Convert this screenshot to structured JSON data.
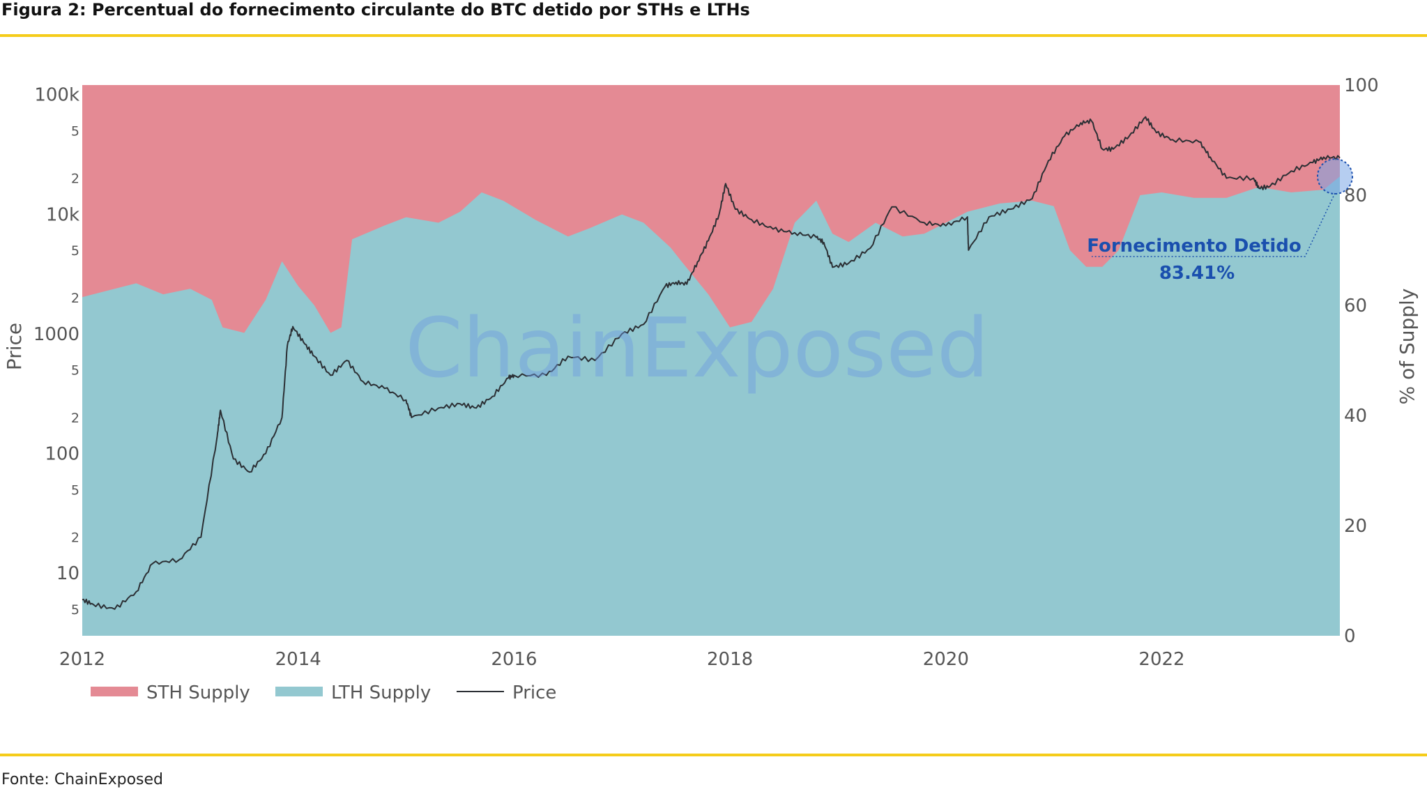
{
  "figure": {
    "title": "Figura 2: Percentual do fornecimento circulante do BTC detido por STHs e LTHs",
    "source": "Fonte: ChainExposed",
    "watermark": "ChainExposed",
    "accent_rule_color": "#f5cc1a"
  },
  "chart_data": {
    "type": "area",
    "x_range": [
      2012.0,
      2023.65
    ],
    "x_ticks": [
      "2012",
      "2014",
      "2016",
      "2018",
      "2020",
      "2022"
    ],
    "left_axis": {
      "title": "Price",
      "scale": "log",
      "range": [
        3,
        120000
      ],
      "major_ticks": [
        {
          "value": 10,
          "label": "10"
        },
        {
          "value": 100,
          "label": "100"
        },
        {
          "value": 1000,
          "label": "1000"
        },
        {
          "value": 10000,
          "label": "10k"
        },
        {
          "value": 100000,
          "label": "100k"
        }
      ],
      "minor_ticks": [
        {
          "value": 5,
          "label": "5"
        },
        {
          "value": 20,
          "label": "2"
        },
        {
          "value": 50,
          "label": "5"
        },
        {
          "value": 200,
          "label": "2"
        },
        {
          "value": 500,
          "label": "5"
        },
        {
          "value": 2000,
          "label": "2"
        },
        {
          "value": 5000,
          "label": "5"
        },
        {
          "value": 20000,
          "label": "2"
        },
        {
          "value": 50000,
          "label": "5"
        }
      ]
    },
    "right_axis": {
      "title": "% of Supply",
      "range": [
        0,
        100
      ],
      "ticks": [
        {
          "value": 0,
          "label": "0"
        },
        {
          "value": 20,
          "label": "20"
        },
        {
          "value": 40,
          "label": "40"
        },
        {
          "value": 60,
          "label": "60"
        },
        {
          "value": 80,
          "label": "80"
        },
        {
          "value": 100,
          "label": "100"
        }
      ]
    },
    "series": [
      {
        "name": "STH Supply",
        "kind": "area-fill-to-100",
        "color": "#e48a94"
      },
      {
        "name": "LTH Supply",
        "kind": "area-from-0",
        "color": "#93c8d0"
      },
      {
        "name": "Price",
        "kind": "line",
        "color": "#2b2f34"
      }
    ],
    "lth_supply_pct": {
      "x": [
        2012.0,
        2012.3,
        2012.5,
        2012.75,
        2013.0,
        2013.2,
        2013.3,
        2013.5,
        2013.7,
        2013.85,
        2014.0,
        2014.15,
        2014.3,
        2014.4,
        2014.5,
        2014.8,
        2015.0,
        2015.3,
        2015.5,
        2015.7,
        2015.9,
        2016.2,
        2016.5,
        2016.7,
        2017.0,
        2017.2,
        2017.45,
        2017.55,
        2017.8,
        2018.0,
        2018.2,
        2018.4,
        2018.6,
        2018.8,
        2018.95,
        2019.1,
        2019.35,
        2019.6,
        2019.8,
        2020.0,
        2020.2,
        2020.5,
        2020.8,
        2021.0,
        2021.15,
        2021.3,
        2021.45,
        2021.6,
        2021.8,
        2022.0,
        2022.3,
        2022.6,
        2022.9,
        2023.2,
        2023.5,
        2023.65
      ],
      "y": [
        61.5,
        63,
        64,
        62,
        63,
        61,
        56,
        55,
        61,
        68,
        63.5,
        60,
        55,
        56,
        72,
        74.5,
        76,
        75,
        77,
        80.5,
        79,
        75.5,
        72.5,
        74,
        76.5,
        75,
        70.5,
        68,
        62,
        56,
        57,
        63,
        75,
        79,
        73,
        71.5,
        75,
        72.5,
        73,
        75,
        77,
        78.5,
        79,
        78,
        70,
        67,
        67,
        70,
        80,
        80.5,
        79.5,
        79.5,
        81.5,
        80.5,
        81,
        83.41
      ]
    },
    "price_usd": {
      "x": [
        2012.0,
        2012.1,
        2012.3,
        2012.5,
        2012.65,
        2012.9,
        2013.1,
        2013.25,
        2013.28,
        2013.4,
        2013.55,
        2013.7,
        2013.85,
        2013.9,
        2013.95,
        2014.05,
        2014.15,
        2014.3,
        2014.45,
        2014.6,
        2014.8,
        2015.0,
        2015.05,
        2015.3,
        2015.5,
        2015.65,
        2015.8,
        2015.95,
        2016.0,
        2016.3,
        2016.5,
        2016.75,
        2017.0,
        2017.2,
        2017.4,
        2017.5,
        2017.6,
        2017.7,
        2017.8,
        2017.9,
        2017.96,
        2018.05,
        2018.2,
        2018.4,
        2018.6,
        2018.8,
        2018.87,
        2018.95,
        2019.1,
        2019.3,
        2019.5,
        2019.8,
        2020.0,
        2020.2,
        2020.21,
        2020.4,
        2020.6,
        2020.8,
        2020.95,
        2021.1,
        2021.25,
        2021.35,
        2021.45,
        2021.55,
        2021.7,
        2021.85,
        2021.95,
        2022.1,
        2022.35,
        2022.45,
        2022.6,
        2022.85,
        2022.9,
        2023.0,
        2023.2,
        2023.4,
        2023.5,
        2023.65
      ],
      "y": [
        6,
        5.5,
        5,
        7,
        12,
        13,
        20,
        140,
        230,
        90,
        70,
        100,
        200,
        800,
        1150,
        850,
        650,
        450,
        600,
        400,
        350,
        280,
        200,
        240,
        260,
        240,
        300,
        430,
        450,
        450,
        650,
        600,
        1000,
        1200,
        2500,
        2700,
        2600,
        4000,
        6000,
        10000,
        18000,
        11000,
        9000,
        7500,
        7000,
        6400,
        5800,
        3600,
        3900,
        5200,
        11500,
        8500,
        8000,
        9500,
        5000,
        9500,
        11000,
        13500,
        28000,
        45000,
        58000,
        60000,
        35000,
        35000,
        45000,
        65000,
        48000,
        42000,
        40000,
        30000,
        20000,
        20000,
        16500,
        17000,
        23000,
        27000,
        30000,
        29500
      ]
    },
    "annotation": {
      "label": "Fornecimento Detido",
      "value": "83.41%",
      "at_x": 2023.65,
      "at_pct": 83.41
    },
    "legend_position": "bottom-left",
    "grid": false
  }
}
